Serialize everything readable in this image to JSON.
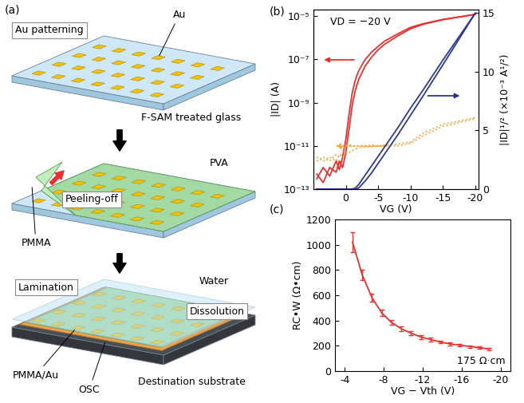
{
  "diagram": {
    "label": "(a)",
    "step1": {
      "title": "Au patterning",
      "pads": "Au",
      "substrate": "F-SAM treated glass"
    },
    "step2": {
      "title": "Peeling-off",
      "film": "PVA",
      "layer": "PMMA"
    },
    "step3": {
      "title": "Lamination",
      "liquid": "Water",
      "action": "Dissolution",
      "film": "PMMA/Au",
      "semiconductor": "OSC",
      "substrate": "Destination substrate"
    }
  },
  "chart_data": [
    {
      "type": "line",
      "title": "(b)",
      "annotation": "VD = −20 V",
      "x_label": "VG (V)",
      "y_label": "|ID| (A)",
      "y2_label": "|ID|¹/² (×10⁻³ A¹/²)",
      "log": "y",
      "xlim": [
        5,
        -20.5
      ],
      "xticks": [
        0,
        -5,
        -10,
        -15,
        -20
      ],
      "ylim": [
        1e-13,
        2e-05
      ],
      "yticks": [
        {
          "value": 1e-13,
          "label": "10⁻¹³"
        },
        {
          "value": 1e-11,
          "label": "10⁻¹¹"
        },
        {
          "value": 1e-09,
          "label": "10⁻⁹"
        },
        {
          "value": 1e-07,
          "label": "10⁻⁷"
        },
        {
          "value": 1e-05,
          "label": "10⁻⁵"
        }
      ],
      "y2lim": [
        0,
        15.3
      ],
      "y2ticks": [
        0,
        5,
        10,
        15
      ],
      "x": [
        4.5,
        3.5,
        2.5,
        1.5,
        1,
        0.5,
        0,
        -0.5,
        -1,
        -1.5,
        -2,
        -3,
        -4,
        -5,
        -6,
        -8,
        -10,
        -12,
        -15,
        -20
      ],
      "series": [
        {
          "color": "#e8312f",
          "line_style": "solid",
          "values": [
            3e-13,
            1e-12,
            4e-13,
            2e-12,
            8e-13,
            3e-12,
            2e-11,
            3e-10,
            3e-09,
            1.2e-08,
            3e-08,
            1e-07,
            2.2e-07,
            4e-07,
            7e-07,
            1.5e-06,
            3e-06,
            4.5e-06,
            7e-06,
            1.2e-05
          ]
        },
        {
          "color": "#e8312f",
          "line_style": "solid",
          "values": [
            5e-13,
            2e-13,
            1e-12,
            6e-13,
            2e-12,
            1e-12,
            5e-12,
            6e-11,
            8e-10,
            4e-09,
            1.2e-08,
            5e-08,
            1.3e-07,
            2.8e-07,
            5e-07,
            1.2e-06,
            2.6e-06,
            4.2e-06,
            6.8e-06,
            1.2e-05
          ]
        },
        {
          "color": "#2b3a8f",
          "line_style": "solid",
          "axis": "y2",
          "values": [
            0,
            0,
            0,
            0,
            0,
            0,
            0,
            0,
            0,
            0.1,
            0.4,
            1.2,
            2.0,
            2.8,
            3.6,
            5.2,
            6.9,
            8.5,
            11.0,
            15.0
          ]
        },
        {
          "color": "#2b3a8f",
          "line_style": "solid",
          "axis": "y2",
          "values": [
            0,
            0,
            0,
            0,
            0,
            0,
            0,
            0,
            0,
            0,
            0.1,
            0.7,
            1.4,
            2.2,
            3.0,
            4.6,
            6.3,
            8.0,
            10.6,
            15.0
          ]
        },
        {
          "color": "#f5a33b",
          "line_style": "dotted",
          "values": [
            2e-12,
            3e-12,
            2e-12,
            4e-12,
            3e-12,
            5e-12,
            1e-11,
            1.2e-11,
            1e-11,
            1e-11,
            1e-11,
            1e-11,
            1.1e-11,
            1e-11,
            1.1e-11,
            1.2e-11,
            1.5e-11,
            4e-11,
            1e-10,
            2e-10
          ]
        },
        {
          "color": "#f5a33b",
          "line_style": "dotted",
          "values": [
            3e-12,
            2e-12,
            3e-12,
            2e-12,
            4e-12,
            3e-12,
            4e-12,
            5e-12,
            6e-12,
            7e-12,
            8e-12,
            9e-12,
            9e-12,
            1e-11,
            1e-11,
            1e-11,
            1.3e-11,
            3e-11,
            8e-11,
            1.8e-10
          ]
        }
      ]
    },
    {
      "type": "line",
      "title": "(c)",
      "annotation": "175 Ω·cm",
      "x_label": "VG − Vth (V)",
      "y_label": "RC•W (Ω•cm)",
      "xlim": [
        -3,
        -21
      ],
      "xticks": [
        -4,
        -8,
        -12,
        -16,
        -20
      ],
      "ylim": [
        0,
        1200
      ],
      "yticks": [
        0,
        200,
        400,
        600,
        800,
        1000,
        1200
      ],
      "color": "#e8312f",
      "x": [
        -4.8,
        -5.8,
        -6.8,
        -7.8,
        -8.8,
        -9.8,
        -10.8,
        -11.8,
        -12.8,
        -13.8,
        -14.8,
        -15.8,
        -16.8,
        -17.8,
        -18.8
      ],
      "values": [
        1020,
        760,
        580,
        460,
        385,
        335,
        300,
        270,
        250,
        230,
        215,
        205,
        195,
        185,
        175
      ],
      "errors": [
        80,
        40,
        30,
        25,
        20,
        20,
        15,
        15,
        15,
        12,
        12,
        12,
        10,
        10,
        10
      ]
    }
  ]
}
